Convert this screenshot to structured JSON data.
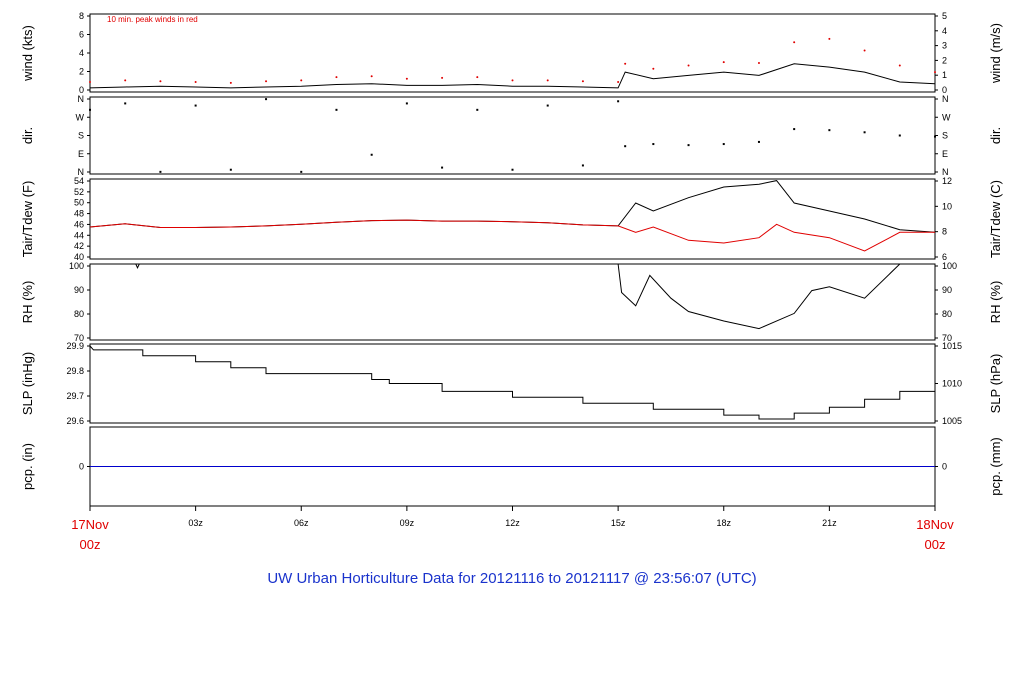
{
  "chart_data": {
    "type": "line",
    "title": "UW Urban Horticulture Data for 20121116  to  20121117 @ 23:56:07  (UTC)",
    "x_axis": {
      "start_label": [
        "17Nov",
        "00z"
      ],
      "end_label": [
        "18Nov",
        "00z"
      ],
      "tick_labels": [
        "03z",
        "06z",
        "09z",
        "12z",
        "15z",
        "18z",
        "21z"
      ],
      "range_hours": [
        0,
        24
      ]
    },
    "panels": [
      {
        "id": "wind",
        "ylabel_left": "wind (kts)",
        "ylabel_right": "wind (m/s)",
        "ylim": [
          0,
          9.4
        ],
        "left_ticks": [
          "0",
          "2",
          "4",
          "6",
          "8"
        ],
        "right_ticks": [
          "0",
          "1",
          "2",
          "3",
          "4",
          "5"
        ],
        "annotation": "10 min. peak winds in red",
        "series": [
          {
            "values": [
              [
                0,
                0.5
              ],
              [
                1,
                0.6
              ],
              [
                2,
                0.7
              ],
              [
                3,
                0.6
              ],
              [
                4,
                0.5
              ],
              [
                5,
                0.6
              ],
              [
                6,
                0.7
              ],
              [
                7,
                0.9
              ],
              [
                8,
                1.0
              ],
              [
                9,
                0.8
              ],
              [
                10,
                0.8
              ],
              [
                11,
                0.9
              ],
              [
                12,
                0.7
              ],
              [
                13,
                0.7
              ],
              [
                14,
                0.6
              ],
              [
                15,
                0.5
              ],
              [
                15.2,
                2.4
              ],
              [
                16,
                1.6
              ],
              [
                17,
                2.0
              ],
              [
                18,
                2.4
              ],
              [
                19,
                2.0
              ],
              [
                20,
                3.4
              ],
              [
                21,
                3.0
              ],
              [
                22,
                2.4
              ],
              [
                23,
                1.2
              ],
              [
                24,
                1.0
              ]
            ]
          },
          {
            "values": [
              [
                0,
                1.2
              ],
              [
                1,
                1.4
              ],
              [
                2,
                1.3
              ],
              [
                3,
                1.2
              ],
              [
                4,
                1.1
              ],
              [
                5,
                1.3
              ],
              [
                6,
                1.4
              ],
              [
                7,
                1.8
              ],
              [
                8,
                1.9
              ],
              [
                9,
                1.6
              ],
              [
                10,
                1.7
              ],
              [
                11,
                1.8
              ],
              [
                12,
                1.4
              ],
              [
                13,
                1.4
              ],
              [
                14,
                1.3
              ],
              [
                15,
                1.2
              ],
              [
                15.2,
                3.4
              ],
              [
                16,
                2.8
              ],
              [
                17,
                3.2
              ],
              [
                18,
                3.6
              ],
              [
                19,
                3.5
              ],
              [
                20,
                6.0
              ],
              [
                21,
                6.4
              ],
              [
                22,
                5.0
              ],
              [
                23,
                3.2
              ],
              [
                24,
                2.4
              ]
            ]
          }
        ]
      },
      {
        "id": "dir",
        "ylabel_left": "dir.",
        "ylabel_right": "dir.",
        "ylim": [
          0,
          360
        ],
        "left_ticks": [
          "N",
          "E",
          "S",
          "W",
          "N"
        ],
        "right_ticks": [
          "N",
          "E",
          "S",
          "W",
          "N"
        ],
        "series": [
          {
            "values": [
              [
                0,
                300
              ],
              [
                1,
                330
              ],
              [
                2,
                10
              ],
              [
                3,
                320
              ],
              [
                4,
                20
              ],
              [
                5,
                350
              ],
              [
                6,
                10
              ],
              [
                7,
                300
              ],
              [
                8,
                90
              ],
              [
                9,
                330
              ],
              [
                10,
                30
              ],
              [
                11,
                300
              ],
              [
                12,
                20
              ],
              [
                13,
                320
              ],
              [
                14,
                40
              ],
              [
                15,
                340
              ],
              [
                15.2,
                130
              ],
              [
                16,
                140
              ],
              [
                17,
                135
              ],
              [
                18,
                140
              ],
              [
                19,
                150
              ],
              [
                20,
                210
              ],
              [
                21,
                205
              ],
              [
                22,
                195
              ],
              [
                23,
                180
              ],
              [
                24,
                175
              ]
            ]
          }
        ]
      },
      {
        "id": "temp",
        "ylabel_left": "Tair/Tdew (F)",
        "ylabel_right": "Tair/Tdew (C)",
        "ylim": [
          40,
          55
        ],
        "left_ticks": [
          "40",
          "42",
          "44",
          "46",
          "48",
          "50",
          "52",
          "54"
        ],
        "right_ticks": [
          "6",
          "8",
          "10",
          "12"
        ],
        "series": [
          {
            "values": [
              [
                0,
                46.0
              ],
              [
                1,
                46.6
              ],
              [
                2,
                45.9
              ],
              [
                3,
                45.9
              ],
              [
                4,
                46.0
              ],
              [
                5,
                46.2
              ],
              [
                6,
                46.5
              ],
              [
                7,
                46.9
              ],
              [
                8,
                47.2
              ],
              [
                9,
                47.3
              ],
              [
                10,
                47.1
              ],
              [
                11,
                47.1
              ],
              [
                12,
                47.0
              ],
              [
                13,
                46.8
              ],
              [
                14,
                46.4
              ],
              [
                15,
                46.2
              ],
              [
                15.5,
                50.5
              ],
              [
                16,
                49.0
              ],
              [
                17,
                51.5
              ],
              [
                18,
                53.5
              ],
              [
                19,
                54.0
              ],
              [
                19.5,
                54.7
              ],
              [
                20,
                50.5
              ],
              [
                21,
                49.0
              ],
              [
                22,
                47.5
              ],
              [
                23,
                45.5
              ],
              [
                24,
                45.0
              ]
            ]
          },
          {
            "values": [
              [
                0,
                46.0
              ],
              [
                1,
                46.6
              ],
              [
                2,
                45.9
              ],
              [
                3,
                45.9
              ],
              [
                4,
                46.0
              ],
              [
                5,
                46.2
              ],
              [
                6,
                46.5
              ],
              [
                7,
                46.9
              ],
              [
                8,
                47.2
              ],
              [
                9,
                47.3
              ],
              [
                10,
                47.1
              ],
              [
                11,
                47.1
              ],
              [
                12,
                47.0
              ],
              [
                13,
                46.8
              ],
              [
                14,
                46.4
              ],
              [
                15,
                46.2
              ],
              [
                15.5,
                45.0
              ],
              [
                16,
                46.0
              ],
              [
                17,
                43.5
              ],
              [
                18,
                43.0
              ],
              [
                19,
                44.0
              ],
              [
                19.5,
                46.5
              ],
              [
                20,
                45.0
              ],
              [
                21,
                44.0
              ],
              [
                22,
                41.5
              ],
              [
                23,
                45.0
              ],
              [
                24,
                45.0
              ]
            ]
          }
        ]
      },
      {
        "id": "rh",
        "ylabel_left": "RH (%)",
        "ylabel_right": "RH (%)",
        "ylim": [
          60,
          100
        ],
        "left_ticks": [
          "70",
          "80",
          "90",
          "100"
        ],
        "right_ticks": [
          "70",
          "80",
          "90",
          "100"
        ],
        "series": [
          {
            "values": [
              [
                0,
                100
              ],
              [
                1.3,
                100
              ],
              [
                1.35,
                98
              ],
              [
                1.4,
                100
              ],
              [
                15,
                100
              ],
              [
                15.1,
                85
              ],
              [
                15.5,
                78
              ],
              [
                15.9,
                94
              ],
              [
                16.5,
                82
              ],
              [
                17,
                75
              ],
              [
                18,
                70
              ],
              [
                19,
                66
              ],
              [
                20,
                74
              ],
              [
                20.5,
                86
              ],
              [
                21,
                88
              ],
              [
                22,
                82
              ],
              [
                23,
                100
              ],
              [
                24,
                100
              ]
            ]
          }
        ]
      },
      {
        "id": "slp",
        "ylabel_left": "SLP (inHg)",
        "ylabel_right": "SLP (hPa)",
        "ylim": [
          29.58,
          29.98
        ],
        "left_ticks": [
          "29.6",
          "29.7",
          "29.8",
          "29.9"
        ],
        "right_ticks": [
          "1005",
          "1010",
          "1015"
        ],
        "series": [
          {
            "values": [
              [
                0,
                29.97
              ],
              [
                0.1,
                29.95
              ],
              [
                1.5,
                29.95
              ],
              [
                1.5,
                29.92
              ],
              [
                3,
                29.92
              ],
              [
                3,
                29.89
              ],
              [
                4,
                29.89
              ],
              [
                4,
                29.86
              ],
              [
                5,
                29.86
              ],
              [
                5,
                29.83
              ],
              [
                8,
                29.83
              ],
              [
                8,
                29.8
              ],
              [
                8.5,
                29.8
              ],
              [
                8.5,
                29.78
              ],
              [
                10,
                29.78
              ],
              [
                10,
                29.74
              ],
              [
                12,
                29.74
              ],
              [
                12,
                29.71
              ],
              [
                14,
                29.71
              ],
              [
                14,
                29.68
              ],
              [
                16,
                29.68
              ],
              [
                16,
                29.65
              ],
              [
                18,
                29.65
              ],
              [
                18,
                29.62
              ],
              [
                19,
                29.62
              ],
              [
                19,
                29.6
              ],
              [
                20,
                29.6
              ],
              [
                20,
                29.63
              ],
              [
                21,
                29.63
              ],
              [
                21,
                29.66
              ],
              [
                22,
                29.66
              ],
              [
                22,
                29.7
              ],
              [
                23,
                29.7
              ],
              [
                23,
                29.74
              ],
              [
                24,
                29.74
              ]
            ]
          }
        ]
      },
      {
        "id": "pcp",
        "ylabel_left": "pcp. (in)",
        "ylabel_right": "pcp. (mm)",
        "ylim": [
          -1,
          1
        ],
        "left_ticks": [
          "0"
        ],
        "right_ticks": [
          "0"
        ],
        "series": [
          {
            "values": [
              [
                0,
                0
              ],
              [
                24,
                0
              ]
            ]
          }
        ]
      }
    ],
    "colors": {
      "temperature": "#000000",
      "dewpoint": "#e00000",
      "wind": "#000000",
      "wind_peak": "#e00000",
      "precip": "#0000cc",
      "title": "#1a33cc",
      "date_labels": "#e00000"
    }
  }
}
